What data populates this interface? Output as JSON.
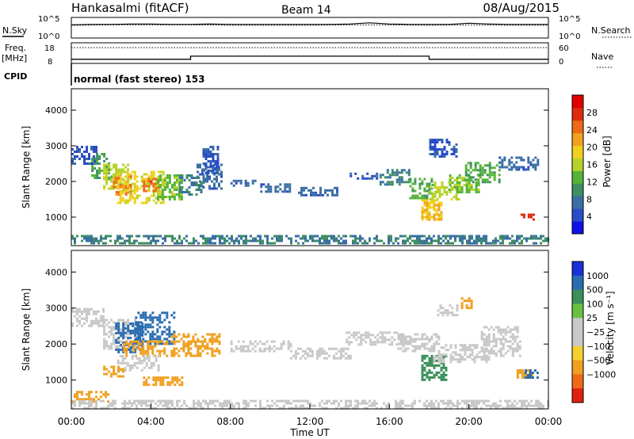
{
  "header": {
    "station": "Hankasalmi (fitACF)",
    "beam": "Beam 14",
    "date": "08/Aug/2015"
  },
  "chart_data": [
    {
      "type": "line",
      "name": "noise",
      "left_label": "N.Sky",
      "right_label": "N.Search",
      "left_ticks": [
        "10^5",
        "10^0"
      ],
      "right_ticks": [
        "10^5",
        "10^0"
      ],
      "xlim": [
        0,
        24
      ],
      "series": [
        {
          "name": "N.Sky",
          "x": [
            0,
            1,
            2,
            3,
            4,
            5,
            6,
            7,
            8,
            9,
            10,
            11,
            12,
            13,
            14,
            15,
            16,
            17,
            18,
            19,
            20,
            21,
            22,
            23,
            24
          ],
          "values": [
            3.2,
            3.3,
            3.3,
            3.4,
            3.4,
            3.3,
            3.3,
            3.4,
            3.3,
            3.3,
            3.3,
            3.3,
            3.3,
            3.3,
            3.4,
            3.7,
            3.4,
            3.3,
            3.3,
            3.3,
            3.6,
            3.4,
            3.3,
            3.3,
            3.3
          ]
        },
        {
          "name": "N.Search",
          "x": [
            0,
            2,
            4,
            6,
            8,
            10,
            12,
            14,
            16,
            18,
            20,
            22,
            24
          ],
          "values": [
            3.1,
            3.2,
            3.2,
            3.2,
            3.1,
            3.1,
            3.1,
            3.2,
            3.2,
            3.1,
            3.2,
            3.1,
            3.1
          ]
        }
      ]
    },
    {
      "type": "line",
      "name": "frequency-nave",
      "left_label": "Freq.",
      "left_unit": "[MHz]",
      "right_label": "Nave",
      "left_ticks": [
        "18",
        "8"
      ],
      "right_ticks": [
        "60",
        "0"
      ],
      "xlim": [
        0,
        24
      ],
      "series": [
        {
          "name": "Freq.",
          "x": [
            0,
            6,
            6,
            18,
            18,
            24
          ],
          "values": [
            10,
            10,
            11.5,
            11.5,
            10,
            10
          ]
        },
        {
          "name": "Nave",
          "x": [
            0,
            24
          ],
          "values": [
            46,
            46
          ]
        }
      ]
    },
    {
      "type": "table",
      "name": "cpid",
      "label": "CPID",
      "text": "normal (fast stereo) 153"
    },
    {
      "type": "heatmap",
      "name": "power",
      "ylabel": "Slant Range [km]",
      "xlim": [
        0,
        24
      ],
      "ylim": [
        200,
        4600
      ],
      "yticks": [
        1000,
        2000,
        3000,
        4000
      ],
      "colorbar": {
        "label": "Power [dB]",
        "ticks": [
          4,
          8,
          12,
          16,
          20,
          24,
          28
        ],
        "range": [
          0,
          32
        ],
        "colors": [
          "#1010e8",
          "#2a4cc8",
          "#3a6ea5",
          "#3f8f64",
          "#55b33a",
          "#b5d32a",
          "#f0d020",
          "#f4a020",
          "#ee6a18",
          "#e02a10",
          "#e00000"
        ]
      },
      "regions": [
        {
          "t": [
            0.0,
            1.2
          ],
          "r": [
            2500,
            3000
          ],
          "v": 4
        },
        {
          "t": [
            1.0,
            1.9
          ],
          "r": [
            2100,
            2800
          ],
          "v": 10
        },
        {
          "t": [
            1.6,
            2.9
          ],
          "r": [
            1800,
            2500
          ],
          "v": 16
        },
        {
          "t": [
            2.1,
            3.0
          ],
          "r": [
            1600,
            2200
          ],
          "v": 24
        },
        {
          "t": [
            2.3,
            4.6
          ],
          "r": [
            1400,
            2300
          ],
          "v": 18
        },
        {
          "t": [
            3.6,
            4.4
          ],
          "r": [
            1700,
            2100
          ],
          "v": 26
        },
        {
          "t": [
            4.3,
            5.6
          ],
          "r": [
            1500,
            2200
          ],
          "v": 14
        },
        {
          "t": [
            5.4,
            6.6
          ],
          "r": [
            1600,
            2200
          ],
          "v": 8
        },
        {
          "t": [
            6.3,
            7.6
          ],
          "r": [
            1800,
            2500
          ],
          "v": 6
        },
        {
          "t": [
            6.6,
            7.4
          ],
          "r": [
            2200,
            3000
          ],
          "v": 4
        },
        {
          "t": [
            8.0,
            9.3
          ],
          "r": [
            1850,
            2050
          ],
          "v": 6
        },
        {
          "t": [
            9.5,
            11.0
          ],
          "r": [
            1700,
            1950
          ],
          "v": 6
        },
        {
          "t": [
            11.4,
            13.4
          ],
          "r": [
            1600,
            1850
          ],
          "v": 6
        },
        {
          "t": [
            14.0,
            15.5
          ],
          "r": [
            2050,
            2250
          ],
          "v": 4
        },
        {
          "t": [
            15.5,
            17.0
          ],
          "r": [
            1900,
            2350
          ],
          "v": 8
        },
        {
          "t": [
            17.0,
            18.1
          ],
          "r": [
            1500,
            2100
          ],
          "v": 12
        },
        {
          "t": [
            17.6,
            18.6
          ],
          "r": [
            900,
            1500
          ],
          "v": 20
        },
        {
          "t": [
            18.0,
            19.5
          ],
          "r": [
            1500,
            2000
          ],
          "v": 16
        },
        {
          "t": [
            19.0,
            20.5
          ],
          "r": [
            1700,
            2200
          ],
          "v": 14
        },
        {
          "t": [
            19.8,
            21.5
          ],
          "r": [
            2000,
            2550
          ],
          "v": 12
        },
        {
          "t": [
            21.5,
            23.5
          ],
          "r": [
            2300,
            2700
          ],
          "v": 6
        },
        {
          "t": [
            18.0,
            19.4
          ],
          "r": [
            2700,
            3200
          ],
          "v": 4
        },
        {
          "t": [
            22.6,
            23.2
          ],
          "r": [
            900,
            1100
          ],
          "v": 28
        },
        {
          "t": [
            0.0,
            24.0
          ],
          "r": [
            250,
            500
          ],
          "v": 8
        }
      ]
    },
    {
      "type": "heatmap",
      "name": "velocity",
      "ylabel": "Slant Range [km]",
      "xlabel": "Time UT",
      "xlim": [
        0,
        24
      ],
      "xticks": [
        "00:00",
        "04:00",
        "08:00",
        "12:00",
        "16:00",
        "20:00",
        "00:00"
      ],
      "ylim": [
        200,
        4600
      ],
      "yticks": [
        1000,
        2000,
        3000,
        4000
      ],
      "colorbar": {
        "label": "Velocity [m s⁻¹]",
        "ticks": [
          "1000",
          "500",
          "100",
          "25",
          "−25",
          "−100",
          "−500",
          "−1000"
        ],
        "colors": [
          "#1a30d8",
          "#2a6cb0",
          "#3a8f5a",
          "#6ac040",
          "#c8c8c8",
          "#c8c8c8",
          "#f4d030",
          "#f0a020",
          "#ee6a18",
          "#e02010"
        ]
      },
      "regions": [
        {
          "t": [
            0.0,
            1.6
          ],
          "r": [
            2500,
            3000
          ],
          "v": 0
        },
        {
          "t": [
            1.6,
            3.2
          ],
          "r": [
            1900,
            2700
          ],
          "v": 0
        },
        {
          "t": [
            2.2,
            3.6
          ],
          "r": [
            1800,
            2600
          ],
          "v": 700
        },
        {
          "t": [
            3.2,
            5.2
          ],
          "r": [
            2000,
            2900
          ],
          "v": 900
        },
        {
          "t": [
            2.6,
            4.8
          ],
          "r": [
            1700,
            2100
          ],
          "v": -300
        },
        {
          "t": [
            5.0,
            7.4
          ],
          "r": [
            1700,
            2300
          ],
          "v": -200
        },
        {
          "t": [
            2.3,
            4.4
          ],
          "r": [
            1300,
            1700
          ],
          "v": 0
        },
        {
          "t": [
            1.6,
            2.6
          ],
          "r": [
            1100,
            1400
          ],
          "v": -150
        },
        {
          "t": [
            3.6,
            5.6
          ],
          "r": [
            900,
            1100
          ],
          "v": -120
        },
        {
          "t": [
            0.0,
            1.8
          ],
          "r": [
            400,
            700
          ],
          "v": -120
        },
        {
          "t": [
            8.0,
            11.0
          ],
          "r": [
            1800,
            2100
          ],
          "v": 0
        },
        {
          "t": [
            11.0,
            14.0
          ],
          "r": [
            1600,
            1900
          ],
          "v": 0
        },
        {
          "t": [
            13.8,
            16.4
          ],
          "r": [
            2000,
            2350
          ],
          "v": 0
        },
        {
          "t": [
            16.4,
            18.5
          ],
          "r": [
            1800,
            2300
          ],
          "v": 0
        },
        {
          "t": [
            17.6,
            18.8
          ],
          "r": [
            1000,
            1700
          ],
          "v": 120
        },
        {
          "t": [
            18.2,
            21.0
          ],
          "r": [
            1500,
            2000
          ],
          "v": 0
        },
        {
          "t": [
            20.6,
            22.6
          ],
          "r": [
            1700,
            2500
          ],
          "v": 0
        },
        {
          "t": [
            18.4,
            19.4
          ],
          "r": [
            2800,
            3100
          ],
          "v": 0
        },
        {
          "t": [
            19.6,
            20.1
          ],
          "r": [
            3000,
            3300
          ],
          "v": -200
        },
        {
          "t": [
            22.4,
            23.2
          ],
          "r": [
            1100,
            1300
          ],
          "v": -120
        },
        {
          "t": [
            22.8,
            23.4
          ],
          "r": [
            1100,
            1300
          ],
          "v": 500
        },
        {
          "t": [
            0.0,
            24.0
          ],
          "r": [
            250,
            450
          ],
          "v": 10
        }
      ]
    }
  ]
}
